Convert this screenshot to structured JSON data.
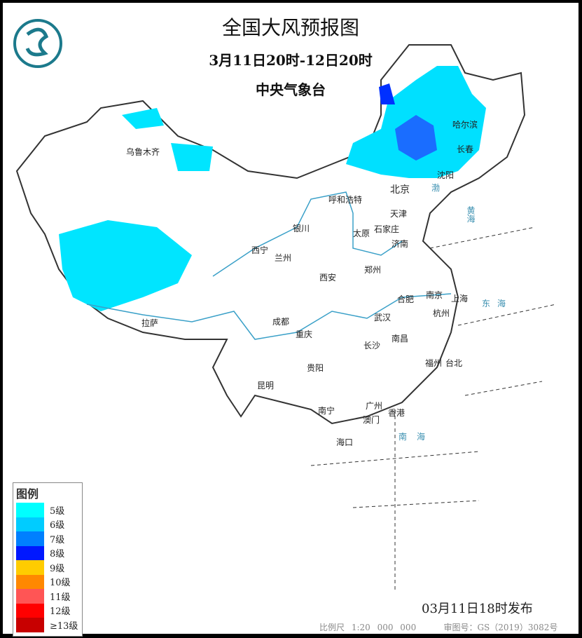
{
  "title": "全国大风预报图",
  "period": "3月11日20时-12日20时",
  "agency": "中央气象台",
  "logo": "中央气象台标志",
  "legend": {
    "title": "图例",
    "items": [
      {
        "label": "5级",
        "color": "#00FFFF"
      },
      {
        "label": "6级",
        "color": "#00CCFF"
      },
      {
        "label": "7级",
        "color": "#0080FF"
      },
      {
        "label": "8级",
        "color": "#0018FF"
      },
      {
        "label": "9级",
        "color": "#FFCC00"
      },
      {
        "label": "10级",
        "color": "#FF8800"
      },
      {
        "label": "11级",
        "color": "#FF5555"
      },
      {
        "label": "12级",
        "color": "#FF0000"
      },
      {
        "label": "≥13级",
        "color": "#C80000"
      }
    ]
  },
  "cities": [
    "乌鲁木齐",
    "哈尔滨",
    "长春",
    "沈阳",
    "北京",
    "呼和浩特",
    "天津",
    "银川",
    "太原",
    "石家庄",
    "济南",
    "西宁",
    "兰州",
    "郑州",
    "西安",
    "南京",
    "合肥",
    "上海",
    "杭州",
    "武汉",
    "成都",
    "拉萨",
    "重庆",
    "长沙",
    "南昌",
    "福州",
    "台北",
    "贵阳",
    "昆明",
    "南宁",
    "广州",
    "香港",
    "澳门",
    "海口"
  ],
  "seas": [
    "东海",
    "南海",
    "黄海",
    "渤"
  ],
  "issued": "03月11日18时发布",
  "scale": "比例尺 1:20 000 000",
  "approval": "审图号：GS（2019）3082号"
}
